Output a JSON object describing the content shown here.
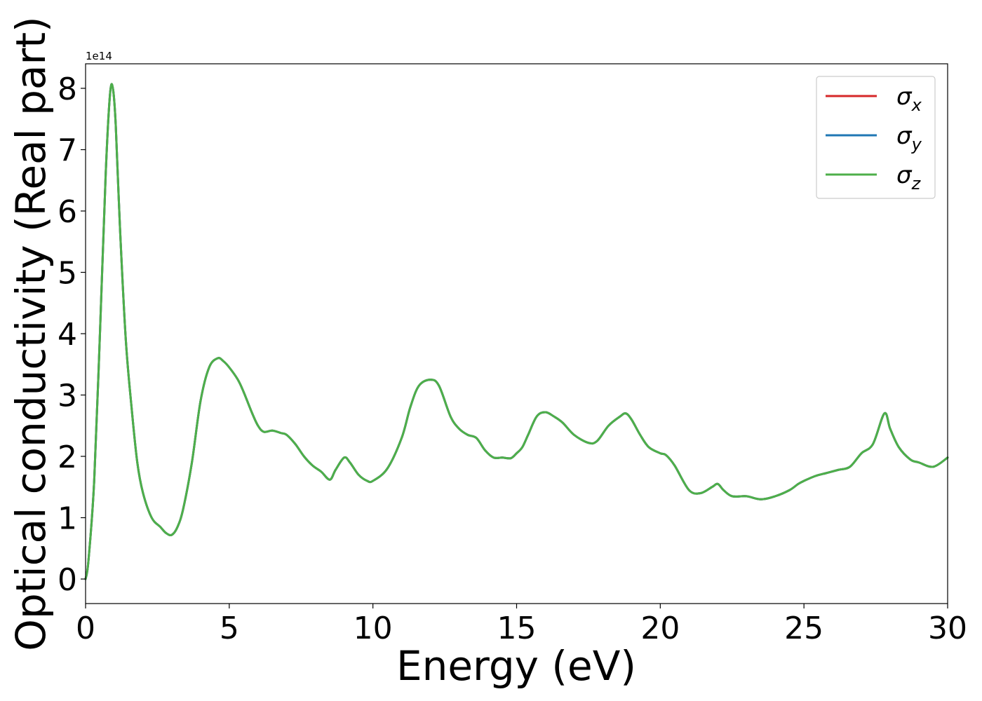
{
  "chart_data": {
    "type": "line",
    "xlabel": "Energy (eV)",
    "ylabel": "Optical conductivity (Real part)",
    "y_offset_label": "1e14",
    "xlim": [
      0,
      30
    ],
    "ylim": [
      -0.4,
      8.4
    ],
    "y_scale_factor": 100000000000000.0,
    "x_ticks": [
      0,
      5,
      10,
      15,
      20,
      25,
      30
    ],
    "x_tick_labels": [
      "0",
      "5",
      "10",
      "15",
      "20",
      "25",
      "30"
    ],
    "y_ticks": [
      0,
      1,
      2,
      3,
      4,
      5,
      6,
      7,
      8
    ],
    "y_tick_labels": [
      "0",
      "1",
      "2",
      "3",
      "4",
      "5",
      "6",
      "7",
      "8"
    ],
    "grid": false,
    "legend_position": "top-right",
    "x": [
      0,
      0.1,
      0.3,
      0.5,
      0.7,
      0.85,
      0.95,
      1.05,
      1.2,
      1.4,
      1.6,
      1.8,
      2.0,
      2.3,
      2.6,
      2.8,
      3.0,
      3.2,
      3.4,
      3.7,
      4.0,
      4.3,
      4.6,
      4.8,
      5.0,
      5.3,
      5.5,
      5.8,
      6.0,
      6.2,
      6.5,
      6.8,
      7.0,
      7.3,
      7.6,
      7.9,
      8.2,
      8.5,
      8.7,
      9.0,
      9.2,
      9.5,
      9.8,
      10.0,
      10.5,
      11.0,
      11.3,
      11.6,
      12.0,
      12.3,
      12.7,
      13.0,
      13.3,
      13.6,
      13.9,
      14.2,
      14.5,
      14.8,
      15.0,
      15.2,
      15.4,
      15.7,
      16.0,
      16.3,
      16.6,
      17.0,
      17.5,
      17.8,
      18.2,
      18.6,
      18.8,
      19.0,
      19.3,
      19.6,
      20.0,
      20.2,
      20.5,
      21.0,
      21.4,
      21.8,
      22.0,
      22.2,
      22.5,
      23.0,
      23.5,
      24.0,
      24.5,
      24.8,
      25.0,
      25.4,
      25.8,
      26.2,
      26.6,
      27.0,
      27.4,
      27.8,
      28.0,
      28.3,
      28.7,
      29.0,
      29.5,
      30.0
    ],
    "series": [
      {
        "name": "σx",
        "color": "#d62728",
        "values": [
          0.0,
          0.3,
          1.6,
          4.0,
          6.6,
          7.9,
          8.0,
          7.4,
          5.7,
          3.9,
          2.8,
          1.9,
          1.4,
          1.0,
          0.85,
          0.75,
          0.72,
          0.85,
          1.15,
          1.9,
          2.9,
          3.45,
          3.6,
          3.55,
          3.45,
          3.25,
          3.05,
          2.7,
          2.5,
          2.4,
          2.42,
          2.38,
          2.35,
          2.2,
          2.0,
          1.85,
          1.75,
          1.62,
          1.78,
          1.98,
          1.9,
          1.7,
          1.6,
          1.6,
          1.8,
          2.3,
          2.8,
          3.15,
          3.25,
          3.15,
          2.65,
          2.45,
          2.35,
          2.3,
          2.1,
          1.98,
          1.98,
          1.97,
          2.05,
          2.15,
          2.35,
          2.65,
          2.72,
          2.65,
          2.55,
          2.35,
          2.22,
          2.25,
          2.5,
          2.65,
          2.7,
          2.6,
          2.35,
          2.15,
          2.05,
          2.02,
          1.85,
          1.45,
          1.4,
          1.5,
          1.55,
          1.45,
          1.35,
          1.35,
          1.3,
          1.35,
          1.45,
          1.55,
          1.6,
          1.68,
          1.73,
          1.78,
          1.83,
          2.05,
          2.2,
          2.7,
          2.45,
          2.15,
          1.95,
          1.9,
          1.83,
          1.98
        ]
      },
      {
        "name": "σy",
        "color": "#1f77b4",
        "values": [
          0.0,
          0.3,
          1.6,
          4.0,
          6.6,
          7.9,
          8.0,
          7.4,
          5.7,
          3.9,
          2.8,
          1.9,
          1.4,
          1.0,
          0.85,
          0.75,
          0.72,
          0.85,
          1.15,
          1.9,
          2.9,
          3.45,
          3.6,
          3.55,
          3.45,
          3.25,
          3.05,
          2.7,
          2.5,
          2.4,
          2.42,
          2.38,
          2.35,
          2.2,
          2.0,
          1.85,
          1.75,
          1.62,
          1.78,
          1.98,
          1.9,
          1.7,
          1.6,
          1.6,
          1.8,
          2.3,
          2.8,
          3.15,
          3.25,
          3.15,
          2.65,
          2.45,
          2.35,
          2.3,
          2.1,
          1.98,
          1.98,
          1.97,
          2.05,
          2.15,
          2.35,
          2.65,
          2.72,
          2.65,
          2.55,
          2.35,
          2.22,
          2.25,
          2.5,
          2.65,
          2.7,
          2.6,
          2.35,
          2.15,
          2.05,
          2.02,
          1.85,
          1.45,
          1.4,
          1.5,
          1.55,
          1.45,
          1.35,
          1.35,
          1.3,
          1.35,
          1.45,
          1.55,
          1.6,
          1.68,
          1.73,
          1.78,
          1.83,
          2.05,
          2.2,
          2.7,
          2.45,
          2.15,
          1.95,
          1.9,
          1.83,
          1.98
        ]
      },
      {
        "name": "σz",
        "color": "#4daf4a",
        "values": [
          0.0,
          0.3,
          1.6,
          4.0,
          6.6,
          7.9,
          8.0,
          7.4,
          5.7,
          3.9,
          2.8,
          1.9,
          1.4,
          1.0,
          0.85,
          0.75,
          0.72,
          0.85,
          1.15,
          1.9,
          2.9,
          3.45,
          3.6,
          3.55,
          3.45,
          3.25,
          3.05,
          2.7,
          2.5,
          2.4,
          2.42,
          2.38,
          2.35,
          2.2,
          2.0,
          1.85,
          1.75,
          1.62,
          1.78,
          1.98,
          1.9,
          1.7,
          1.6,
          1.6,
          1.8,
          2.3,
          2.8,
          3.15,
          3.25,
          3.15,
          2.65,
          2.45,
          2.35,
          2.3,
          2.1,
          1.98,
          1.98,
          1.97,
          2.05,
          2.15,
          2.35,
          2.65,
          2.72,
          2.65,
          2.55,
          2.35,
          2.22,
          2.25,
          2.5,
          2.65,
          2.7,
          2.6,
          2.35,
          2.15,
          2.05,
          2.02,
          1.85,
          1.45,
          1.4,
          1.5,
          1.55,
          1.45,
          1.35,
          1.35,
          1.3,
          1.35,
          1.45,
          1.55,
          1.6,
          1.68,
          1.73,
          1.78,
          1.83,
          2.05,
          2.2,
          2.7,
          2.45,
          2.15,
          1.95,
          1.9,
          1.83,
          1.98
        ]
      }
    ],
    "legend_entries": [
      {
        "symbol": "σ",
        "subscript": "x"
      },
      {
        "symbol": "σ",
        "subscript": "y"
      },
      {
        "symbol": "σ",
        "subscript": "z"
      }
    ]
  }
}
